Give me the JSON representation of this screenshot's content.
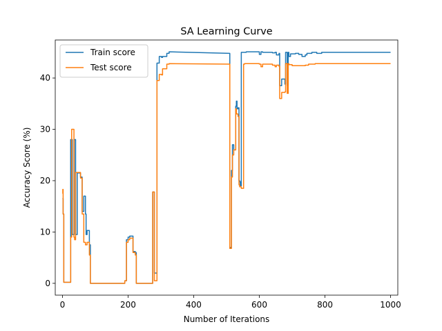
{
  "chart_data": {
    "type": "line",
    "title": "SA Learning Curve",
    "xlabel": "Number of Iterations",
    "ylabel": "Accuracy Score (%)",
    "xlim": [
      -22,
      1022
    ],
    "ylim": [
      -2.3,
      47.4
    ],
    "xticks": [
      0,
      200,
      400,
      600,
      800,
      1000
    ],
    "yticks": [
      0,
      10,
      20,
      30,
      40
    ],
    "grid": false,
    "legend_position": "top-left",
    "series": [
      {
        "name": "Train score",
        "color": "#1f77b4",
        "x": [
          0,
          2,
          2,
          4,
          4,
          5,
          25,
          25,
          30,
          30,
          36,
          36,
          40,
          40,
          45,
          45,
          55,
          55,
          60,
          60,
          65,
          65,
          70,
          70,
          72,
          72,
          75,
          75,
          82,
          82,
          85,
          85,
          190,
          190,
          195,
          195,
          200,
          200,
          205,
          205,
          215,
          215,
          222,
          222,
          225,
          225,
          230,
          230,
          275,
          275,
          280,
          280,
          288,
          288,
          290,
          290,
          295,
          295,
          302,
          302,
          305,
          305,
          318,
          318,
          325,
          325,
          510,
          510,
          512,
          512,
          515,
          515,
          518,
          518,
          522,
          522,
          528,
          528,
          530,
          530,
          532,
          532,
          535,
          535,
          538,
          538,
          540,
          540,
          542,
          542,
          545,
          545,
          552,
          552,
          555,
          555,
          560,
          560,
          600,
          600,
          605,
          605,
          610,
          610,
          640,
          640,
          648,
          648,
          652,
          652,
          660,
          660,
          662,
          662,
          668,
          668,
          678,
          678,
          680,
          680,
          685,
          685,
          688,
          688,
          690,
          690,
          695,
          695,
          710,
          710,
          720,
          720,
          730,
          730,
          740,
          740,
          745,
          745,
          760,
          760,
          775,
          775,
          790,
          790,
          1000
        ],
        "y": [
          16.5,
          16.5,
          13.5,
          13.5,
          0.2,
          0.2,
          0.2,
          28.0,
          28.0,
          9.5,
          9.5,
          28.0,
          28.0,
          9.5,
          9.5,
          21.5,
          21.5,
          20.7,
          20.7,
          14.0,
          14.0,
          17.0,
          17.0,
          13.5,
          13.5,
          9.5,
          9.5,
          10.3,
          10.3,
          7.5,
          7.5,
          0.0,
          0.0,
          0.5,
          0.5,
          8.5,
          8.5,
          9.0,
          9.0,
          9.2,
          9.2,
          6.2,
          6.2,
          6.0,
          6.0,
          0.0,
          0.0,
          0.0,
          0.0,
          17.8,
          17.8,
          2.0,
          2.0,
          42.9,
          42.9,
          42.9,
          42.9,
          44.2,
          44.2,
          44.0,
          44.0,
          44.2,
          44.2,
          44.8,
          44.8,
          45.1,
          44.8,
          7.0,
          7.0,
          7.0,
          7.0,
          22.0,
          22.0,
          27.0,
          27.0,
          26.0,
          26.0,
          34.5,
          34.5,
          35.5,
          35.5,
          34.0,
          34.0,
          34.2,
          34.2,
          20.0,
          20.0,
          19.8,
          19.8,
          19.0,
          19.0,
          45.0,
          45.0,
          45.0,
          45.0,
          45.0,
          45.0,
          45.1,
          45.1,
          44.6,
          44.6,
          45.1,
          45.1,
          45.0,
          45.0,
          44.9,
          44.9,
          45.0,
          45.0,
          44.5,
          44.5,
          44.8,
          44.8,
          38.5,
          38.5,
          39.8,
          39.8,
          38.8,
          38.8,
          45.0,
          45.0,
          38.5,
          38.5,
          45.0,
          45.0,
          44.2,
          44.2,
          44.7,
          44.7,
          44.8,
          44.8,
          44.6,
          44.6,
          44.2,
          44.2,
          44.5,
          44.5,
          44.8,
          44.8,
          45.0,
          45.0,
          44.8,
          44.8,
          45.0,
          45.0
        ]
      },
      {
        "name": "Test score",
        "color": "#ff7f0e",
        "x": [
          0,
          1,
          1,
          2,
          2,
          4,
          4,
          5,
          25,
          25,
          28,
          28,
          30,
          30,
          35,
          35,
          37,
          37,
          40,
          40,
          45,
          45,
          55,
          55,
          60,
          60,
          65,
          65,
          70,
          70,
          75,
          75,
          82,
          82,
          85,
          85,
          190,
          190,
          195,
          195,
          200,
          200,
          205,
          205,
          215,
          215,
          222,
          222,
          225,
          225,
          230,
          230,
          275,
          275,
          280,
          280,
          288,
          288,
          290,
          290,
          295,
          295,
          302,
          302,
          305,
          305,
          318,
          318,
          325,
          325,
          510,
          510,
          515,
          515,
          518,
          518,
          522,
          522,
          528,
          528,
          530,
          530,
          535,
          535,
          538,
          538,
          540,
          540,
          545,
          545,
          552,
          552,
          555,
          555,
          560,
          560,
          600,
          600,
          605,
          605,
          610,
          610,
          640,
          640,
          648,
          648,
          652,
          652,
          660,
          660,
          662,
          662,
          668,
          668,
          678,
          678,
          680,
          680,
          685,
          685,
          688,
          688,
          690,
          690,
          700,
          700,
          740,
          740,
          750,
          750,
          770,
          770,
          1000
        ],
        "y": [
          17.5,
          17.5,
          18.3,
          18.3,
          13.5,
          13.5,
          0.2,
          0.2,
          0.2,
          9.0,
          9.0,
          30.0,
          30.0,
          30.0,
          30.0,
          9.0,
          9.0,
          8.5,
          8.5,
          21.6,
          21.6,
          21.6,
          21.6,
          20.5,
          20.5,
          13.5,
          13.5,
          8.0,
          8.0,
          7.5,
          7.5,
          8.0,
          8.0,
          5.5,
          5.5,
          0.0,
          0.0,
          0.5,
          0.5,
          8.0,
          8.0,
          8.5,
          8.5,
          8.8,
          8.8,
          6.0,
          6.0,
          5.5,
          5.5,
          0.0,
          0.0,
          0.0,
          0.0,
          17.8,
          17.8,
          0.5,
          0.5,
          39.5,
          39.5,
          39.5,
          39.5,
          40.7,
          40.7,
          40.6,
          40.6,
          41.8,
          41.8,
          42.7,
          42.7,
          42.8,
          42.7,
          6.8,
          6.8,
          20.7,
          20.7,
          25.0,
          25.0,
          26.0,
          26.0,
          34.0,
          34.0,
          33.0,
          33.0,
          32.5,
          32.5,
          19.2,
          19.2,
          18.8,
          18.8,
          18.5,
          18.5,
          42.7,
          42.7,
          42.8,
          42.8,
          42.8,
          42.8,
          42.7,
          42.7,
          42.2,
          42.2,
          42.7,
          42.7,
          42.5,
          42.5,
          42.2,
          42.2,
          42.5,
          42.5,
          42.3,
          42.3,
          36.0,
          36.0,
          37.2,
          37.2,
          37.3,
          37.3,
          42.8,
          42.8,
          37.0,
          37.0,
          42.8,
          42.8,
          42.6,
          42.6,
          42.4,
          42.4,
          42.5,
          42.5,
          42.7,
          42.7,
          42.8,
          42.8
        ]
      }
    ]
  }
}
